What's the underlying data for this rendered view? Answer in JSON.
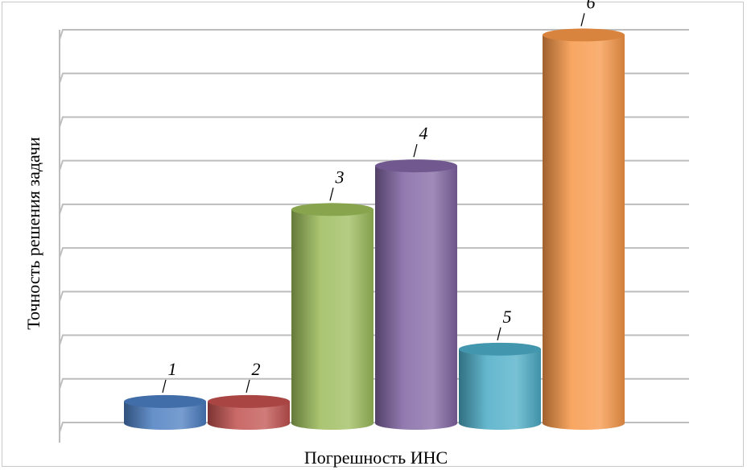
{
  "chart_data": {
    "type": "bar",
    "title": "",
    "xlabel": "Погрешность ИНС",
    "ylabel": "Точность решения задачи",
    "categories": [
      "1",
      "2",
      "3",
      "4",
      "5",
      "6"
    ],
    "values": [
      0.5,
      0.5,
      4.9,
      5.9,
      1.7,
      8.9
    ],
    "ylim": [
      0,
      9
    ],
    "grid": true,
    "legend": "none",
    "colors": [
      "#4a7cc0",
      "#c0504d",
      "#9bbb59",
      "#8064a2",
      "#4bacc6",
      "#f79646"
    ]
  }
}
